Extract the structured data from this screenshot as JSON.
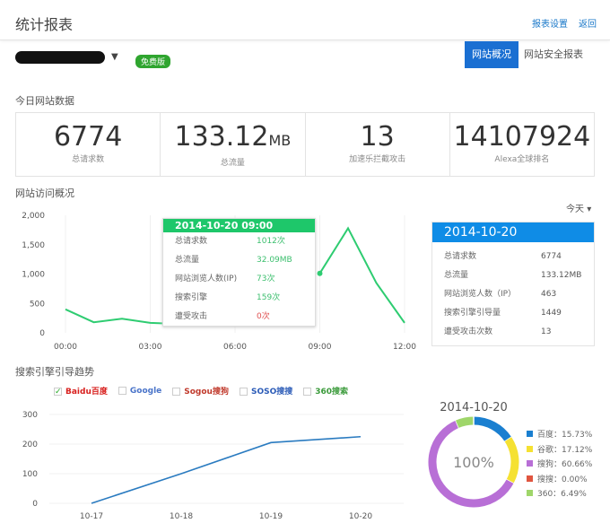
{
  "header": {
    "title": "统计报表",
    "settings": "报表设置",
    "back": "返回"
  },
  "site": {
    "name": "…",
    "badge": "免费版"
  },
  "tabs": [
    "网站概况",
    "网站安全报表"
  ],
  "today": {
    "title": "今日网站数据",
    "stats": [
      {
        "value": "6774",
        "unit": "",
        "label": "总请求数"
      },
      {
        "value": "133.12",
        "unit": "MB",
        "label": "总流量"
      },
      {
        "value": "13",
        "unit": "",
        "label": "加速乐拦截攻击"
      },
      {
        "value": "14107924",
        "unit": "",
        "label": "Alexa全球排名"
      }
    ]
  },
  "overview": {
    "title": "网站访问概况",
    "range": "今天",
    "tooltip": {
      "title": "2014-10-20 09:00",
      "rows": [
        {
          "k": "总请求数",
          "v": "1012次"
        },
        {
          "k": "总流量",
          "v": "32.09MB"
        },
        {
          "k": "网站浏览人数(IP)",
          "v": "73次"
        },
        {
          "k": "搜索引擎",
          "v": "159次"
        },
        {
          "k": "遭受攻击",
          "v": "0次",
          "color": "#e05050"
        }
      ]
    },
    "panel": {
      "date": "2014-10-20",
      "rows": [
        {
          "k": "总请求数",
          "v": "6774"
        },
        {
          "k": "总流量",
          "v": "133.12MB"
        },
        {
          "k": "网站浏览人数（IP）",
          "v": "463"
        },
        {
          "k": "搜索引擎引导量",
          "v": "1449"
        },
        {
          "k": "遭受攻击次数",
          "v": "13"
        }
      ]
    }
  },
  "search": {
    "title": "搜索引擎引导趋势",
    "engines": [
      {
        "name": "Baidu百度",
        "checked": true,
        "color": "#d8201e"
      },
      {
        "name": "Google",
        "checked": false,
        "color": "#4a74c9"
      },
      {
        "name": "Sogou搜狗",
        "checked": false,
        "color": "#c0392b"
      },
      {
        "name": "SOSO搜搜",
        "checked": false,
        "color": "#2b5bb7"
      },
      {
        "name": "360搜索",
        "checked": false,
        "color": "#3a9a3a"
      }
    ]
  },
  "chart_data": [
    {
      "type": "line",
      "color": "#2ecc71",
      "categories": [
        "00:00",
        "01:00",
        "02:00",
        "03:00",
        "04:00",
        "05:00",
        "06:00",
        "07:00",
        "08:00",
        "09:00",
        "10:00",
        "11:00",
        "12:00"
      ],
      "xticks": [
        "00:00",
        "03:00",
        "06:00",
        "09:00",
        "12:00"
      ],
      "values": [
        400,
        180,
        240,
        170,
        150,
        null,
        null,
        null,
        null,
        1012,
        1780,
        850,
        170
      ],
      "yticks": [
        "0",
        "500",
        "1,000",
        "1,500",
        "2,000"
      ],
      "ylim": [
        0,
        2000
      ]
    },
    {
      "type": "line",
      "color": "#2a7bc0",
      "categories": [
        "10-17",
        "10-18",
        "10-19",
        "10-20"
      ],
      "values": [
        0,
        100,
        205,
        225
      ],
      "yticks": [
        "0",
        "100",
        "200",
        "300"
      ],
      "ylim": [
        0,
        300
      ]
    },
    {
      "type": "pie",
      "title": "2014-10-20",
      "center_label": "100%",
      "slices": [
        {
          "name": "百度",
          "value": 15.73,
          "label": "百度：15.73%",
          "color": "#1a7fd0"
        },
        {
          "name": "谷歌",
          "value": 17.12,
          "label": "谷歌：17.12%",
          "color": "#f5e132"
        },
        {
          "name": "搜狗",
          "value": 60.66,
          "label": "搜狗：60.66%",
          "color": "#b86fd6"
        },
        {
          "name": "搜搜",
          "value": 0,
          "label": "搜搜：0.00%",
          "color": "#e0553f"
        },
        {
          "name": "360",
          "value": 6.49,
          "label": "360：6.49%",
          "color": "#9fd66a"
        }
      ]
    }
  ]
}
